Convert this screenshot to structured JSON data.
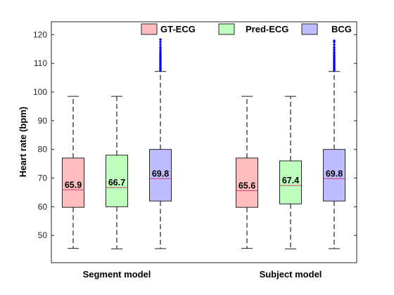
{
  "chart_data": {
    "type": "box",
    "ylabel": "Heart rate (bpm)",
    "xlabel": "",
    "ylim": [
      40.5,
      124.5
    ],
    "yticks": [
      50,
      60,
      70,
      80,
      90,
      100,
      110,
      120
    ],
    "groups": [
      "Segment model",
      "Subject model"
    ],
    "legend": {
      "placement": "top-right"
    },
    "series": [
      {
        "name": "GT-ECG",
        "color": "#ffbdbd"
      },
      {
        "name": "Pred-ECG",
        "color": "#bdffbd"
      },
      {
        "name": "BCG",
        "color": "#bdbdff"
      }
    ],
    "boxes": [
      {
        "group": 0,
        "series": 0,
        "whisker_low": 45.5,
        "q1": 59.8,
        "median": 65.9,
        "q3": 77.0,
        "whisker_high": 98.5,
        "median_label": "65.9",
        "outliers": []
      },
      {
        "group": 0,
        "series": 1,
        "whisker_low": 45.3,
        "q1": 60.0,
        "median": 66.7,
        "q3": 78.0,
        "whisker_high": 98.5,
        "median_label": "66.7",
        "outliers": []
      },
      {
        "group": 0,
        "series": 2,
        "whisker_low": 45.4,
        "q1": 62.0,
        "median": 69.8,
        "q3": 80.0,
        "whisker_high": 107.2,
        "median_label": "69.8",
        "outliers": [
          107.6,
          108.0,
          108.4,
          108.8,
          109.2,
          109.6,
          110.0,
          110.4,
          110.8,
          111.2,
          111.7,
          112.2,
          112.8,
          113.4,
          114.0,
          114.8,
          115.6,
          116.5,
          117.4,
          118.3
        ]
      },
      {
        "group": 1,
        "series": 0,
        "whisker_low": 45.5,
        "q1": 59.8,
        "median": 65.6,
        "q3": 77.0,
        "whisker_high": 98.5,
        "median_label": "65.6",
        "outliers": []
      },
      {
        "group": 1,
        "series": 1,
        "whisker_low": 45.3,
        "q1": 61.0,
        "median": 67.4,
        "q3": 76.0,
        "whisker_high": 98.5,
        "median_label": "67.4",
        "outliers": []
      },
      {
        "group": 1,
        "series": 2,
        "whisker_low": 45.4,
        "q1": 62.0,
        "median": 69.8,
        "q3": 80.0,
        "whisker_high": 107.2,
        "median_label": "69.8",
        "outliers": [
          107.6,
          108.0,
          108.4,
          108.8,
          109.2,
          109.6,
          110.0,
          110.4,
          110.8,
          111.2,
          111.7,
          112.2,
          112.8,
          113.4,
          114.0,
          114.8,
          115.6,
          116.5,
          117.4,
          117.9
        ]
      }
    ],
    "median_color": "#cc3f66",
    "outlier_color": "#0000ff",
    "whisker_style": "dashed"
  }
}
